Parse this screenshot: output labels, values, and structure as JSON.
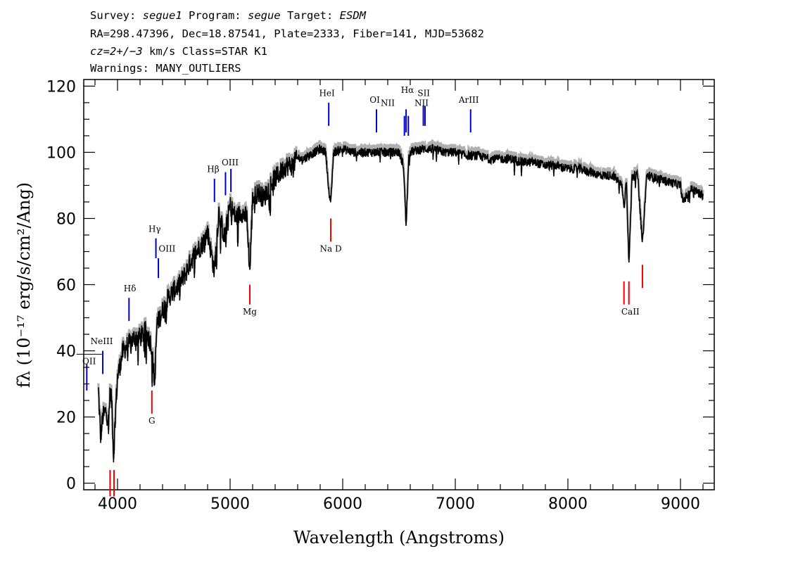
{
  "header": {
    "survey_label": "Survey: ",
    "survey_value": "segue1",
    "program_label": " Program: ",
    "program_value": "segue",
    "target_label": " Target: ",
    "target_value": "ESDM",
    "line2": "RA=298.47396, Dec=18.87541, Plate=2333, Fiber=141, MJD=53682",
    "line3_cz": "cz=2+/−3",
    "line3_rest": " km/s Class=STAR K1",
    "line4": "Warnings: MANY_OUTLIERS"
  },
  "chart_data": {
    "type": "line",
    "xlabel": "Wavelength (Angstroms)",
    "ylabel": "fλ (10⁻¹⁷ erg/s/cm²/Ang)",
    "xlim": [
      3700,
      9300
    ],
    "ylim": [
      -2,
      122
    ],
    "x_ticks": [
      4000,
      5000,
      6000,
      7000,
      8000,
      9000
    ],
    "y_ticks": [
      0,
      20,
      40,
      60,
      80,
      100,
      120
    ],
    "colors": {
      "flux": "#000000",
      "error": "#b0b0b0",
      "emission": "#0000cc",
      "absorption": "#ee0000"
    },
    "spectrum_anchors": {
      "x": [
        3830,
        3850,
        3870,
        3900,
        3920,
        3935,
        3950,
        3965,
        3980,
        4000,
        4050,
        4100,
        4150,
        4200,
        4250,
        4300,
        4330,
        4350,
        4400,
        4450,
        4500,
        4550,
        4600,
        4650,
        4700,
        4750,
        4800,
        4860,
        4900,
        4950,
        5000,
        5050,
        5100,
        5150,
        5175,
        5200,
        5250,
        5300,
        5350,
        5400,
        5450,
        5500,
        5550,
        5600,
        5650,
        5700,
        5750,
        5800,
        5850,
        5880,
        5895,
        5920,
        6000,
        6100,
        6200,
        6300,
        6400,
        6500,
        6540,
        6563,
        6590,
        6700,
        6800,
        6900,
        7000,
        7100,
        7200,
        7300,
        7400,
        7500,
        7600,
        7700,
        7800,
        7900,
        8000,
        8100,
        8200,
        8300,
        8400,
        8480,
        8498,
        8520,
        8542,
        8570,
        8620,
        8662,
        8700,
        8800,
        8900,
        9000,
        9020,
        9100,
        9200
      ],
      "y": [
        28,
        14,
        20,
        22,
        18,
        28,
        24,
        8,
        20,
        32,
        40,
        42,
        44,
        44,
        46,
        42,
        30,
        48,
        52,
        56,
        58,
        60,
        63,
        67,
        70,
        72,
        76,
        64,
        82,
        74,
        84,
        80,
        82,
        80,
        64,
        86,
        88,
        86,
        90,
        92,
        94,
        96,
        96,
        98,
        98,
        99,
        100,
        101,
        100,
        86,
        86,
        100,
        101,
        100,
        100,
        100,
        100,
        100,
        96,
        78,
        100,
        101,
        101,
        100,
        100,
        99,
        99,
        98,
        98,
        98,
        97,
        97,
        96,
        96,
        95,
        95,
        94,
        93,
        93,
        90,
        83,
        92,
        66,
        93,
        93,
        72,
        93,
        92,
        91,
        90,
        85,
        89,
        87
      ]
    },
    "emission_lines": [
      {
        "label": "OII",
        "x": 3727,
        "y0": 28,
        "y1": 36,
        "lx": 3748,
        "ly": 36,
        "bar": true
      },
      {
        "label": "NeIII",
        "x": 3869,
        "y0": 33,
        "y1": 40,
        "lx": 3860,
        "ly": 42
      },
      {
        "label": "Hδ",
        "x": 4102,
        "y0": 49,
        "y1": 56,
        "lx": 4110,
        "ly": 58
      },
      {
        "label": "Hγ",
        "x": 4341,
        "y0": 68,
        "y1": 74,
        "lx": 4330,
        "ly": 76
      },
      {
        "label": "OIII",
        "x": 4363,
        "y0": 62,
        "y1": 68,
        "lx": 4440,
        "ly": 70
      },
      {
        "label": "Hβ",
        "x": 4861,
        "y0": 85,
        "y1": 92,
        "lx": 4850,
        "ly": 94
      },
      {
        "label": "OIII",
        "x": 4959,
        "y0": 87,
        "y1": 94,
        "lx": 5000,
        "ly": 96
      },
      {
        "label": "OIII",
        "x": 5007,
        "y0": 88,
        "y1": 95,
        "lx": 5000,
        "ly": 96,
        "nolabel": true
      },
      {
        "label": "HeI",
        "x": 5876,
        "y0": 108,
        "y1": 115,
        "lx": 5860,
        "ly": 117
      },
      {
        "label": "OI",
        "x": 6300,
        "y0": 106,
        "y1": 113,
        "lx": 6285,
        "ly": 115
      },
      {
        "label": "NII",
        "x": 6548,
        "y0": 105,
        "y1": 111,
        "lx": 6400,
        "ly": 114
      },
      {
        "label": "Hα",
        "x": 6563,
        "y0": 106,
        "y1": 113,
        "lx": 6575,
        "ly": 118
      },
      {
        "label": "NII",
        "x": 6583,
        "y0": 105,
        "y1": 111,
        "lx": 6700,
        "ly": 114
      },
      {
        "label": "SII",
        "x": 6716,
        "y0": 108,
        "y1": 114,
        "lx": 6720,
        "ly": 117
      },
      {
        "label": "SII",
        "x": 6731,
        "y0": 108,
        "y1": 114,
        "lx": 6720,
        "ly": 117,
        "nolabel": true
      },
      {
        "label": "ArIII",
        "x": 7136,
        "y0": 106,
        "y1": 113,
        "lx": 7120,
        "ly": 115
      }
    ],
    "absorption_lines": [
      {
        "label": "",
        "x": 3934,
        "y0": -4,
        "y1": 4,
        "lx": 3950,
        "ly": -6,
        "nolabel": true
      },
      {
        "label": "",
        "x": 3969,
        "y0": -4,
        "y1": 4,
        "lx": 3950,
        "ly": -6,
        "nolabel": true
      },
      {
        "label": "G",
        "x": 4305,
        "y0": 21,
        "y1": 28,
        "lx": 4305,
        "ly": 18
      },
      {
        "label": "Mg",
        "x": 5175,
        "y0": 54,
        "y1": 60,
        "lx": 5175,
        "ly": 51
      },
      {
        "label": "Na D",
        "x": 5894,
        "y0": 73,
        "y1": 80,
        "lx": 5894,
        "ly": 70
      },
      {
        "label": "CaII",
        "x": 8498,
        "y0": 54,
        "y1": 61,
        "lx": 8555,
        "ly": 51
      },
      {
        "label": "CaII",
        "x": 8542,
        "y0": 54,
        "y1": 61,
        "lx": 8555,
        "ly": 51,
        "nolabel": true
      },
      {
        "label": "CaII",
        "x": 8662,
        "y0": 59,
        "y1": 66,
        "lx": 8555,
        "ly": 51,
        "nolabel": true
      }
    ]
  }
}
